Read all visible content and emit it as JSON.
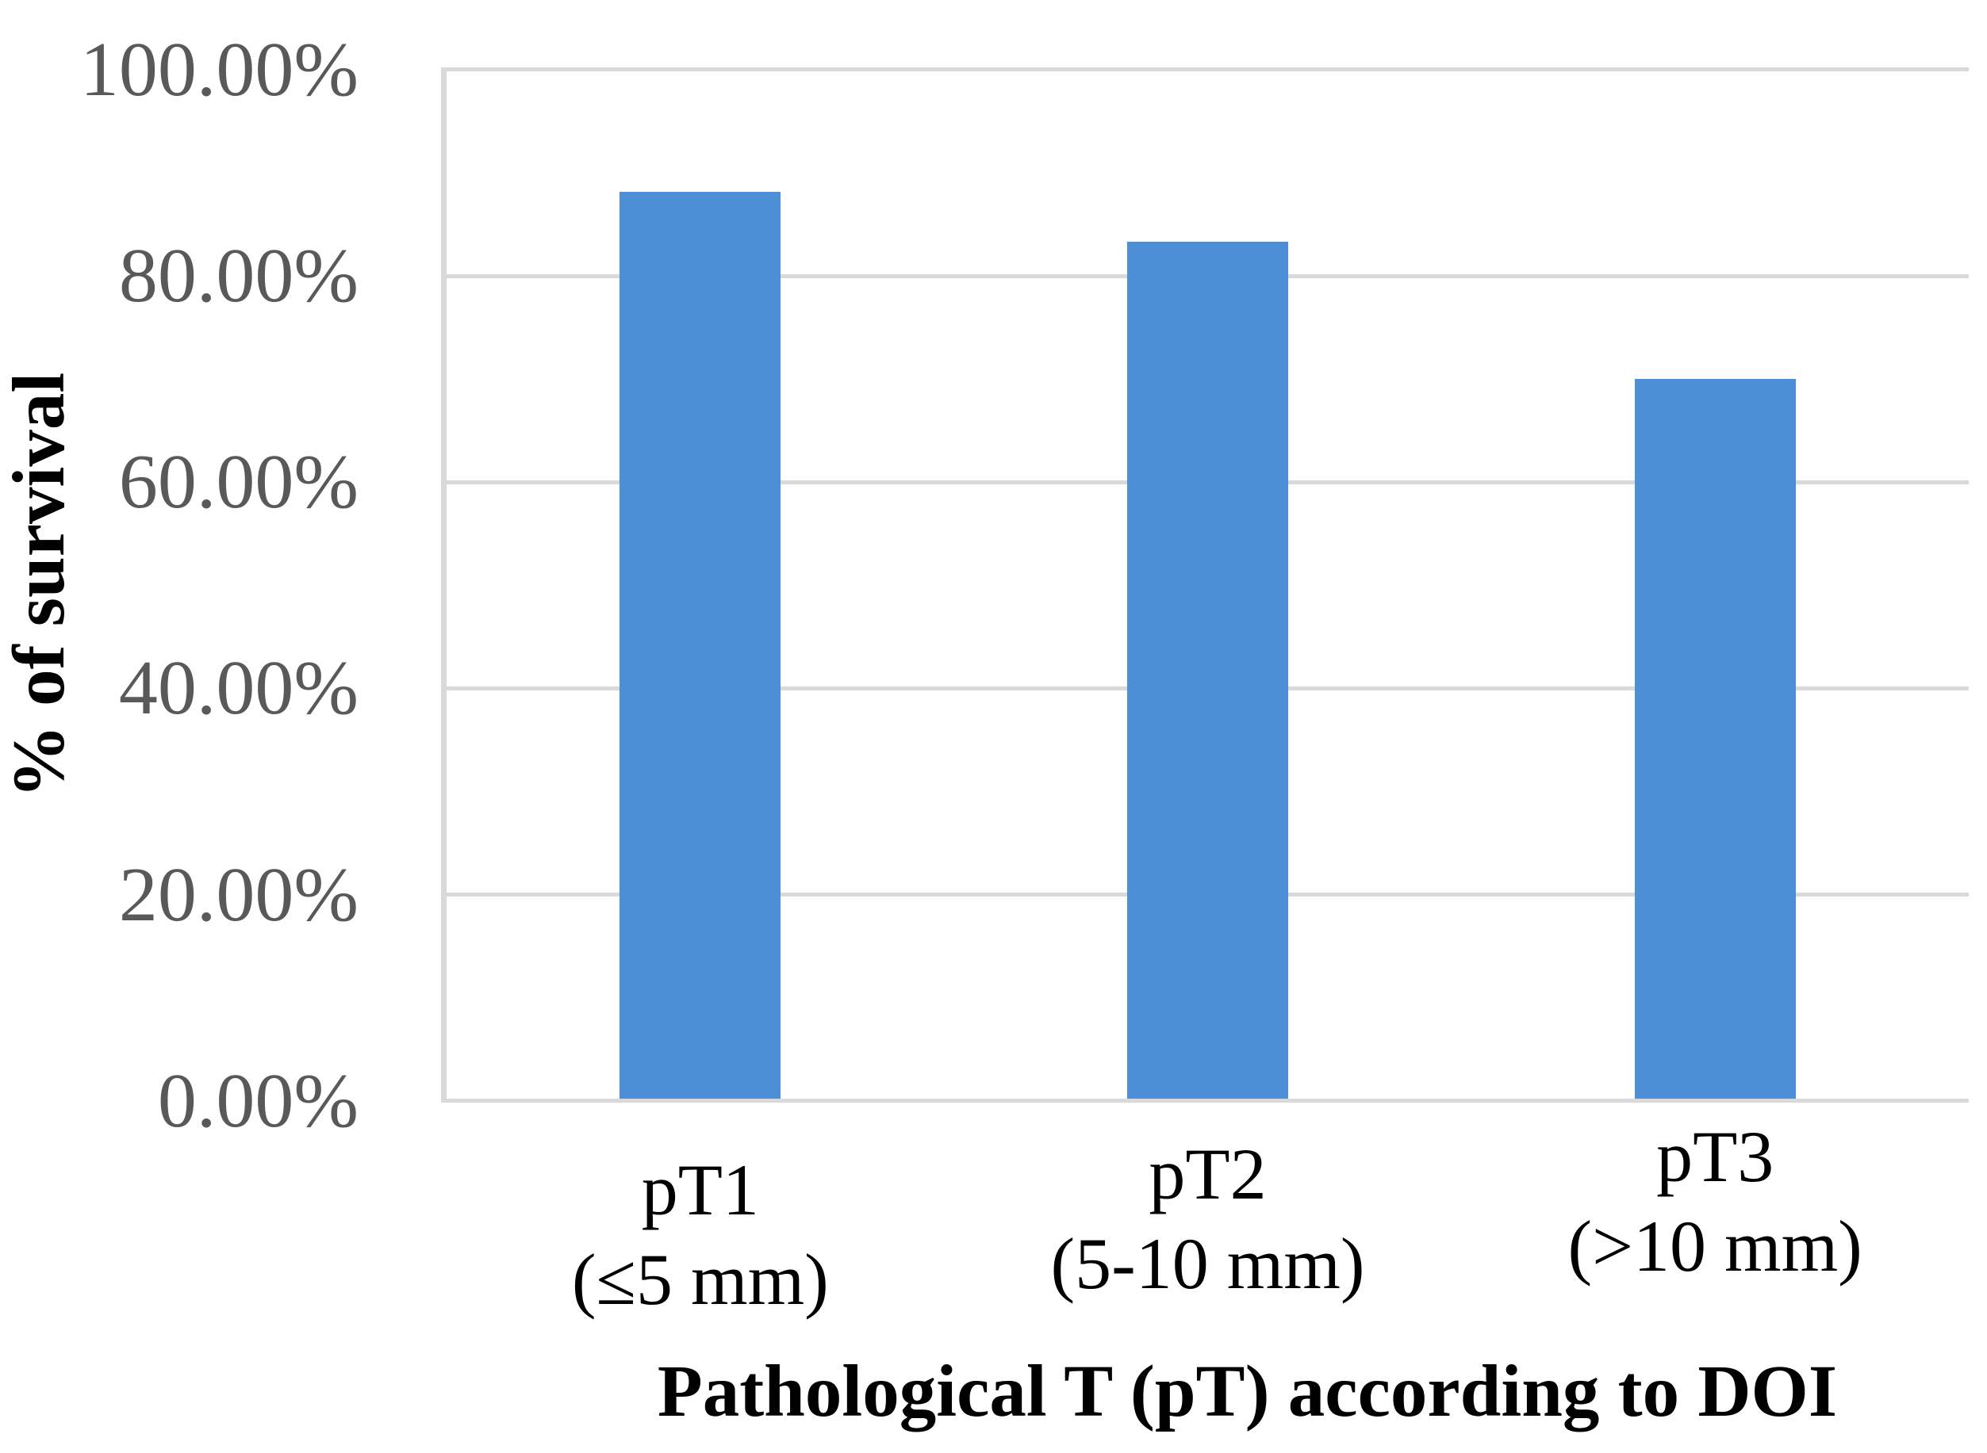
{
  "figure": {
    "background_color": "#FFFFFF"
  },
  "chart_data": {
    "type": "bar",
    "title": "",
    "xlabel": "Pathological T (pT) according to DOI",
    "ylabel": "% of survival",
    "categories": [
      "pT1 (≤5 mm)",
      "pT2 (5-10 mm)",
      "pT3 (>10 mm)"
    ],
    "category_lines": [
      [
        "pT1",
        "(≤5 mm)"
      ],
      [
        "pT2",
        "(5-10 mm)"
      ],
      [
        "pT3",
        "(>10 mm)"
      ]
    ],
    "values": [
      88.2,
      83.3,
      70.0
    ],
    "unit": "percent",
    "ylim": [
      0,
      100
    ],
    "ytick_step": 20,
    "ytick_labels": [
      "100.00%",
      "80.00%",
      "60.00%",
      "40.00%",
      "20.00%",
      "0.00%"
    ],
    "grid": "horizontal",
    "legend": "none",
    "bar_color": "#4D8FD6",
    "gridline_color": "#D9D9D9",
    "tick_label_color": "#595959",
    "axis_title_color": "#000000"
  }
}
